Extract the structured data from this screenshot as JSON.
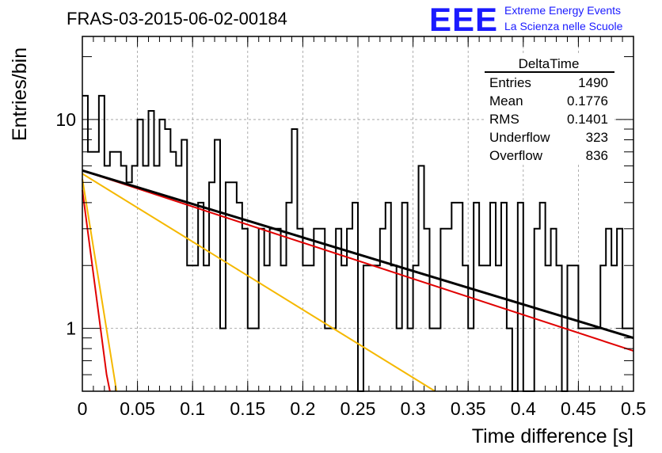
{
  "header": {
    "run_title": "FRAS-03-2015-06-02-00184",
    "logo_text": "EEE",
    "logo_line1": "Extreme Energy Events",
    "logo_line2": "La Scienza nelle Scuole"
  },
  "stats": {
    "title": "DeltaTime",
    "rows": [
      {
        "label": "Entries",
        "value": "1490"
      },
      {
        "label": "Mean",
        "value": "0.1776"
      },
      {
        "label": "RMS",
        "value": "0.1401"
      },
      {
        "label": "Underflow",
        "value": "323"
      },
      {
        "label": "Overflow",
        "value": "836"
      }
    ]
  },
  "colors": {
    "histogram": "#000000",
    "fit_total": "#000000",
    "fit_red": "#e00000",
    "fit_yellow": "#f5b800",
    "grid": "#9a9a9a",
    "logo": "#1a1aff"
  },
  "chart_data": {
    "type": "histogram",
    "xlabel": "Time difference [s]",
    "ylabel": "Entries/bin",
    "xlim": [
      0,
      0.5
    ],
    "ylim": [
      0.5,
      25
    ],
    "yscale": "log",
    "grid": true,
    "xticks": [
      "0",
      "0.05",
      "0.1",
      "0.15",
      "0.2",
      "0.25",
      "0.3",
      "0.35",
      "0.4",
      "0.45",
      "0.5"
    ],
    "yticks": [
      "1",
      "10"
    ],
    "bin_width": 0.005,
    "counts": [
      13,
      7,
      7,
      13,
      6,
      7,
      7,
      6,
      5,
      6,
      10,
      6,
      11,
      6,
      10,
      9,
      7,
      6,
      8,
      2,
      2,
      4,
      2,
      5,
      8,
      1,
      5,
      5,
      4,
      3,
      1,
      1,
      3,
      2,
      3,
      3,
      2,
      4,
      9,
      3,
      2,
      2,
      3,
      3,
      1,
      1,
      3,
      2,
      3,
      4,
      0,
      2,
      2,
      2,
      3,
      4,
      2,
      1,
      4,
      1,
      2,
      6,
      3,
      1,
      1,
      3,
      3,
      4,
      4,
      2,
      1,
      4,
      2,
      2,
      4,
      2,
      4,
      1,
      0,
      4,
      0,
      0,
      3,
      4,
      2,
      3,
      2,
      0,
      2,
      2,
      1,
      1,
      1,
      1,
      2,
      3,
      2,
      3,
      1,
      1
    ],
    "series": [
      {
        "type": "exponential",
        "color": "black",
        "points": [
          [
            0,
            5.7
          ],
          [
            0.5,
            0.9
          ]
        ]
      },
      {
        "type": "exponential",
        "color": "red",
        "points": [
          [
            0,
            5.7
          ],
          [
            0.5,
            0.78
          ]
        ]
      },
      {
        "type": "exponential",
        "color": "yellow",
        "points": [
          [
            0,
            5.5
          ],
          [
            0.32,
            0.5
          ]
        ]
      },
      {
        "type": "exponential",
        "color": "red",
        "points": [
          [
            0,
            4.6
          ],
          [
            0.022,
            0.6
          ],
          [
            0.025,
            0.5
          ]
        ]
      },
      {
        "type": "exponential",
        "color": "yellow",
        "points": [
          [
            0,
            5.2
          ],
          [
            0.031,
            0.5
          ]
        ]
      }
    ]
  }
}
